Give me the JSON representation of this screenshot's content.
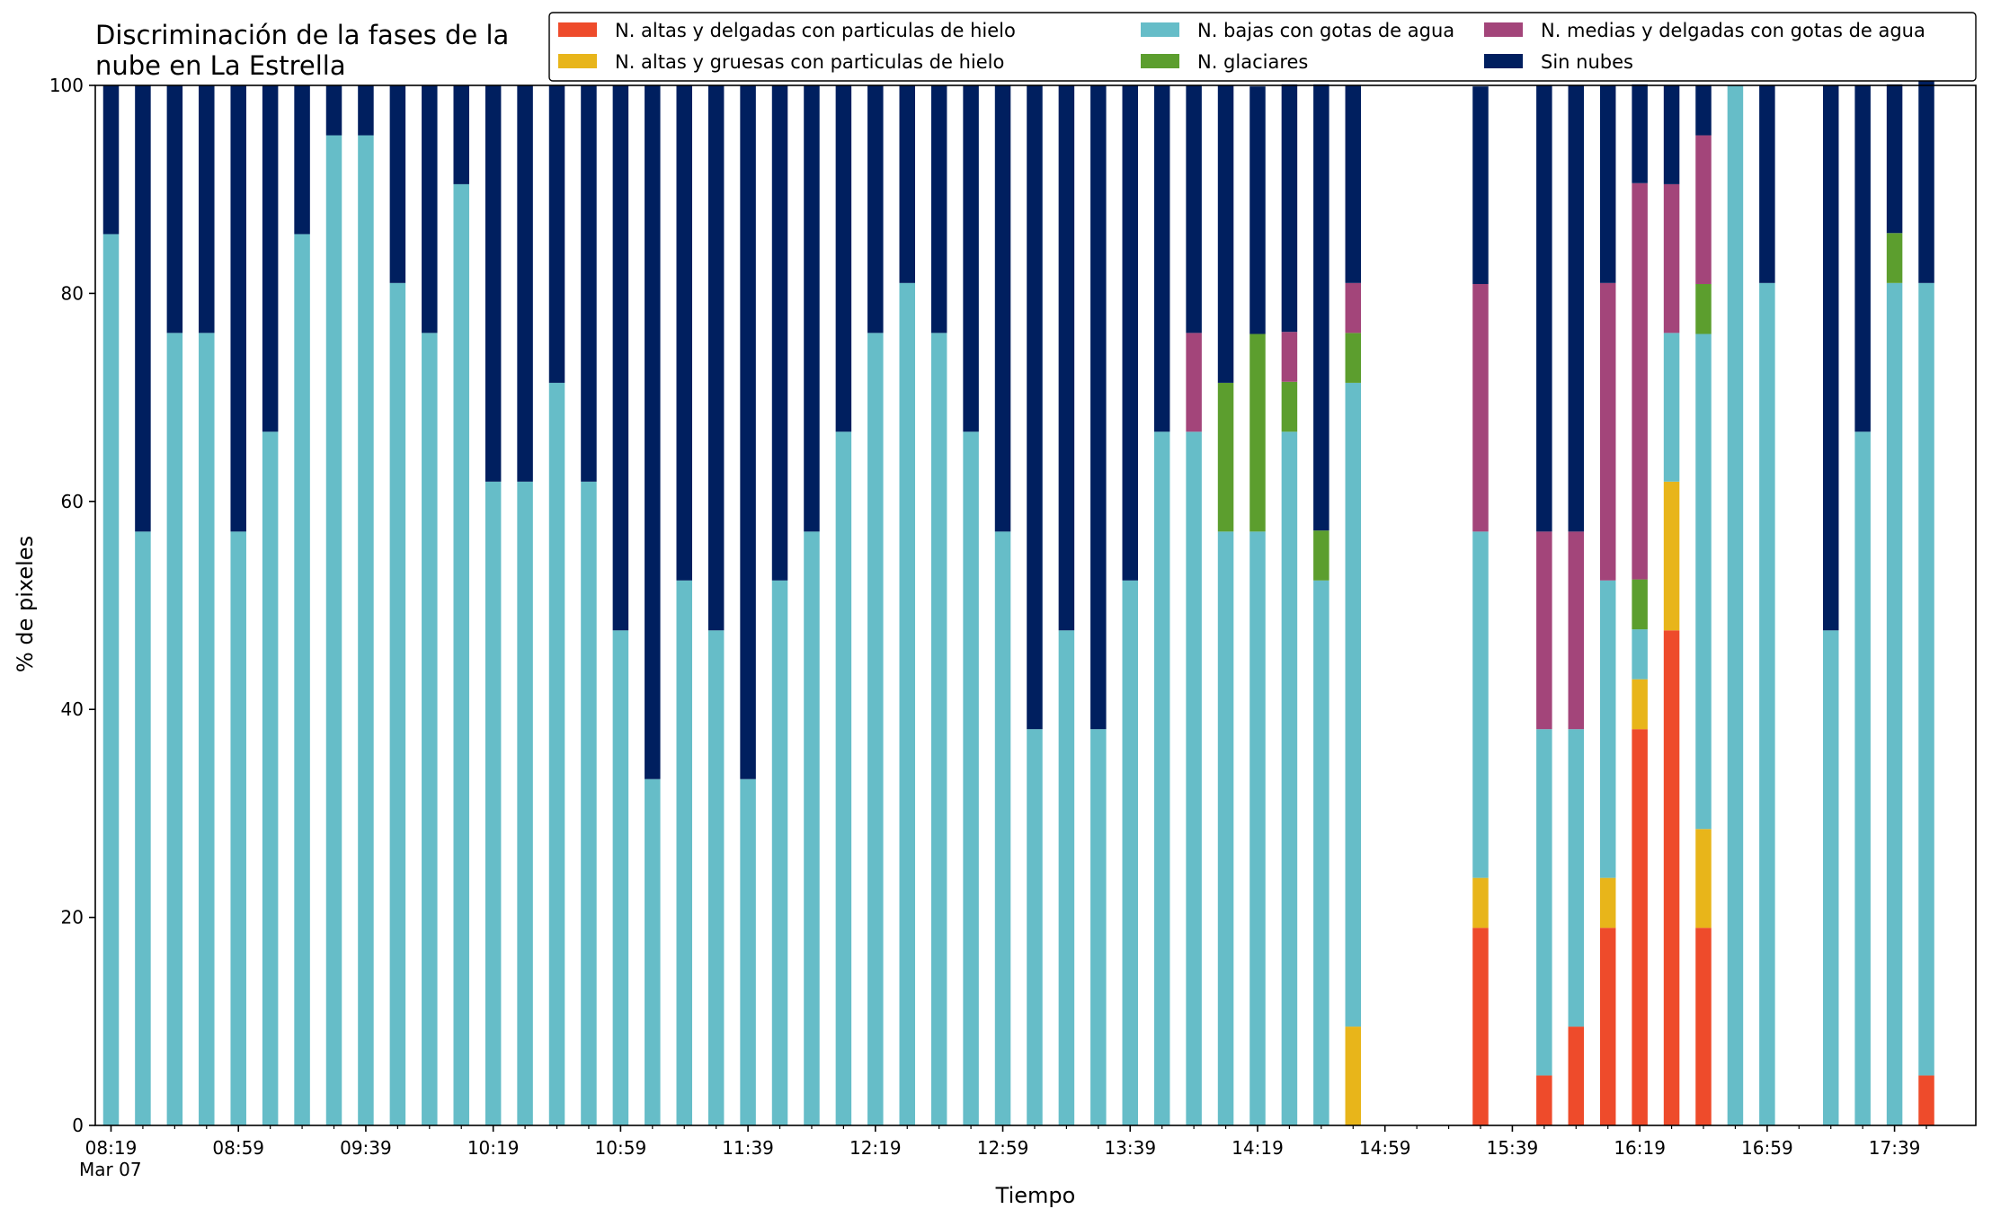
{
  "chart_data": {
    "type": "bar",
    "stacked": true,
    "title": "Discriminación de la fases de la\nnube en La Estrella",
    "xlabel": "Tiempo",
    "ylabel": "% de pixeles",
    "ylim": [
      0,
      100
    ],
    "yticks": [
      0,
      20,
      40,
      60,
      80,
      100
    ],
    "grid": false,
    "legend_position": "top-right",
    "x_tick_labels": [
      "08:19\nMar 07",
      "08:59",
      "09:39",
      "10:19",
      "10:59",
      "11:39",
      "12:19",
      "12:59",
      "13:39",
      "14:19",
      "14:59",
      "15:39",
      "16:19",
      "16:59",
      "17:39"
    ],
    "categories": [
      "08:19",
      "08:29",
      "08:39",
      "08:49",
      "08:59",
      "09:09",
      "09:19",
      "09:29",
      "09:39",
      "09:49",
      "09:59",
      "10:09",
      "10:19",
      "10:29",
      "10:39",
      "10:49",
      "10:59",
      "11:09",
      "11:19",
      "11:29",
      "11:39",
      "11:49",
      "11:59",
      "12:09",
      "12:19",
      "12:29",
      "12:39",
      "12:49",
      "12:59",
      "13:09",
      "13:19",
      "13:29",
      "13:39",
      "13:49",
      "13:59",
      "14:09",
      "14:19",
      "14:29",
      "14:39",
      "14:49",
      "14:59",
      "15:09",
      "15:19",
      "15:29",
      "15:39",
      "15:49",
      "15:59",
      "16:09",
      "16:19",
      "16:29",
      "16:39",
      "16:49",
      "16:59",
      "17:09",
      "17:19",
      "17:29",
      "17:39",
      "17:49"
    ],
    "series": [
      {
        "name": "N. altas y delgadas con particulas de hielo",
        "color": "#ee4b2b",
        "values": [
          0,
          0,
          0,
          0,
          0,
          0,
          0,
          0,
          0,
          0,
          0,
          0,
          0,
          0,
          0,
          0,
          0,
          0,
          0,
          0,
          0,
          0,
          0,
          0,
          0,
          0,
          0,
          0,
          0,
          0,
          0,
          0,
          0,
          0,
          0,
          0,
          0,
          0,
          0,
          0,
          0,
          0,
          0,
          19,
          0,
          4.8,
          9.5,
          19,
          38.1,
          47.6,
          19,
          0,
          0,
          0,
          0,
          0,
          0,
          4.8
        ]
      },
      {
        "name": "N. altas y gruesas con particulas de hielo",
        "color": "#e8b51a",
        "values": [
          0,
          0,
          0,
          0,
          0,
          0,
          0,
          0,
          0,
          0,
          0,
          0,
          0,
          0,
          0,
          0,
          0,
          0,
          0,
          0,
          0,
          0,
          0,
          0,
          0,
          0,
          0,
          0,
          0,
          0,
          0,
          0,
          0,
          0,
          0,
          0,
          0,
          0,
          0,
          9.5,
          0,
          0,
          0,
          4.8,
          0,
          0,
          0,
          4.8,
          4.8,
          14.3,
          9.5,
          0,
          0,
          0,
          0,
          0,
          0,
          0
        ]
      },
      {
        "name": "N. bajas con gotas de agua",
        "color": "#66bdc8",
        "values": [
          85.7,
          57.1,
          76.2,
          76.2,
          57.1,
          66.7,
          85.7,
          95.2,
          95.2,
          81,
          76.2,
          90.5,
          61.9,
          61.9,
          71.4,
          61.9,
          47.6,
          33.3,
          52.4,
          47.6,
          33.3,
          52.4,
          57.1,
          66.7,
          76.2,
          81,
          76.2,
          66.7,
          57.1,
          38.1,
          47.6,
          38.1,
          52.4,
          66.7,
          66.7,
          57.1,
          57.1,
          66.7,
          52.4,
          61.9,
          0,
          0,
          0,
          33.3,
          0,
          33.3,
          28.6,
          28.6,
          4.8,
          14.3,
          47.6,
          100,
          81,
          0,
          47.6,
          66.7,
          81,
          76.2
        ]
      },
      {
        "name": "N. glaciares",
        "color": "#5c9e2e",
        "values": [
          0,
          0,
          0,
          0,
          0,
          0,
          0,
          0,
          0,
          0,
          0,
          0,
          0,
          0,
          0,
          0,
          0,
          0,
          0,
          0,
          0,
          0,
          0,
          0,
          0,
          0,
          0,
          0,
          0,
          0,
          0,
          0,
          0,
          0,
          0,
          14.3,
          19,
          4.8,
          4.8,
          4.8,
          0,
          0,
          0,
          0,
          0,
          0,
          0,
          0,
          4.8,
          0,
          4.8,
          0,
          0,
          0,
          0,
          0,
          4.8,
          0
        ]
      },
      {
        "name": "N. medias y delgadas con gotas de agua",
        "color": "#a3457a",
        "values": [
          0,
          0,
          0,
          0,
          0,
          0,
          0,
          0,
          0,
          0,
          0,
          0,
          0,
          0,
          0,
          0,
          0,
          0,
          0,
          0,
          0,
          0,
          0,
          0,
          0,
          0,
          0,
          0,
          0,
          0,
          0,
          0,
          0,
          0,
          9.5,
          0,
          0,
          4.8,
          0,
          4.8,
          0,
          0,
          0,
          23.8,
          0,
          19,
          19,
          28.6,
          38.1,
          14.3,
          14.3,
          0,
          0,
          0,
          0,
          0,
          0,
          0
        ]
      },
      {
        "name": "Sin nubes",
        "color": "#001f5f",
        "values": [
          14.3,
          42.9,
          23.8,
          23.8,
          42.9,
          33.3,
          14.3,
          4.8,
          4.8,
          19,
          23.8,
          9.5,
          38.1,
          38.1,
          28.6,
          38.1,
          52.4,
          66.7,
          47.6,
          52.4,
          66.7,
          47.6,
          42.9,
          33.3,
          23.8,
          19,
          23.8,
          33.3,
          42.9,
          61.9,
          52.4,
          61.9,
          47.6,
          33.3,
          23.8,
          28.6,
          23.8,
          23.8,
          42.9,
          19,
          0,
          0,
          0,
          19,
          0,
          42.9,
          42.9,
          19,
          9.5,
          9.5,
          4.8,
          0,
          19,
          0,
          52.4,
          33.3,
          14.3,
          23.8
        ]
      }
    ]
  }
}
